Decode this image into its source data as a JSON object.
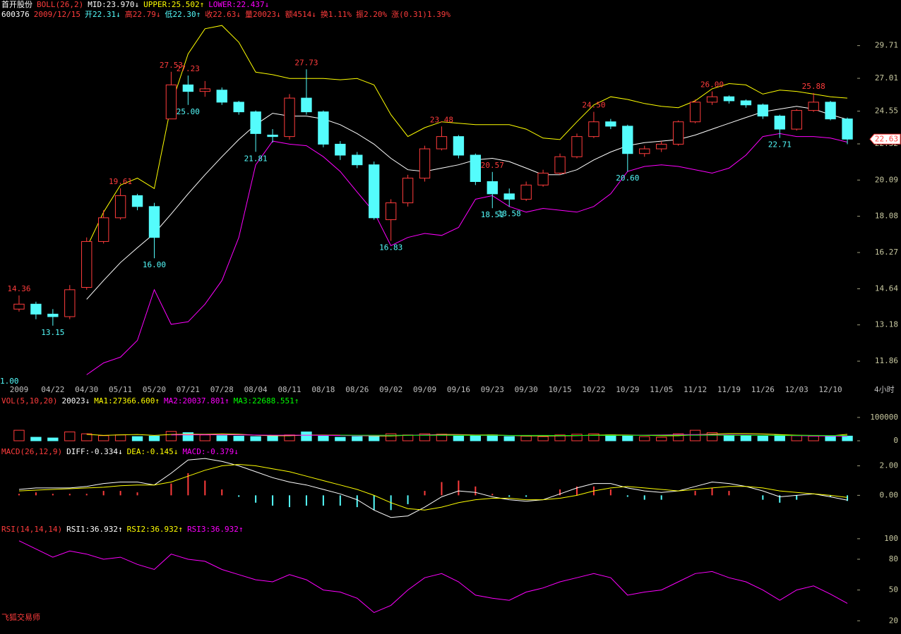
{
  "header": {
    "title_row": [
      {
        "text": "首开股份",
        "color": "#ffffff"
      },
      {
        "text": "BOLL(26,2)",
        "color": "#ff3c3c"
      },
      {
        "text": "MID:23.970↓",
        "color": "#ffffff"
      },
      {
        "text": "UPPER:25.502↑",
        "color": "#ffff00"
      },
      {
        "text": "LOWER:22.437↓",
        "color": "#ff00ff"
      }
    ],
    "quote_row": [
      {
        "text": "600376",
        "color": "#ffffff"
      },
      {
        "text": "2009/12/15",
        "color": "#ff3c3c"
      },
      {
        "text": "开22.31↓",
        "color": "#54fcfc"
      },
      {
        "text": "高22.79↓",
        "color": "#ff3c3c"
      },
      {
        "text": "低22.30↑",
        "color": "#54fcfc"
      },
      {
        "text": "收22.63↓",
        "color": "#ff3c3c"
      },
      {
        "text": "量20023↓",
        "color": "#ff3c3c"
      },
      {
        "text": "额4514↓",
        "color": "#ff3c3c"
      },
      {
        "text": "换1.11%",
        "color": "#ff3c3c"
      },
      {
        "text": "振2.20%",
        "color": "#ff3c3c"
      },
      {
        "text": "涨(0.31)1.39%",
        "color": "#ff3c3c"
      }
    ]
  },
  "footer": "飞狐交易师",
  "chart_data": [
    {
      "type": "candlestick",
      "log": true,
      "up_color": "#ff3c3c",
      "down_color": "#54fcfc",
      "categories": [
        "2009",
        null,
        "04/22",
        null,
        "04/30",
        null,
        "05/11",
        null,
        "05/20",
        null,
        "07/21",
        null,
        "07/28",
        null,
        "08/04",
        null,
        "08/11",
        null,
        "08/18",
        null,
        "08/26",
        null,
        "09/02",
        null,
        "09/09",
        null,
        "09/16",
        null,
        "09/23",
        null,
        "09/30",
        null,
        "10/15",
        null,
        "10/22",
        null,
        "10/29",
        null,
        "11/05",
        null,
        "11/12",
        null,
        "11/19",
        null,
        "11/26",
        null,
        "12/03",
        null,
        "12/10",
        null
      ],
      "open": [
        13.8,
        14.0,
        13.6,
        13.5,
        14.7,
        16.8,
        18.0,
        19.2,
        18.6,
        24.0,
        26.5,
        26.0,
        26.1,
        25.2,
        24.5,
        22.9,
        22.8,
        25.5,
        24.5,
        22.3,
        21.6,
        21.0,
        17.9,
        18.8,
        20.2,
        22.0,
        22.8,
        21.6,
        20.0,
        19.3,
        19.0,
        19.8,
        20.5,
        21.5,
        22.8,
        23.8,
        23.5,
        21.7,
        22.0,
        22.3,
        23.8,
        25.2,
        25.6,
        25.3,
        25.0,
        24.2,
        23.3,
        24.6,
        25.2,
        24.0
      ],
      "high": [
        14.36,
        14.1,
        13.8,
        14.8,
        17.0,
        18.4,
        19.61,
        19.3,
        18.8,
        27.53,
        27.23,
        26.8,
        26.3,
        25.3,
        24.6,
        23.3,
        25.8,
        27.73,
        24.6,
        22.5,
        21.8,
        21.2,
        19.0,
        20.4,
        22.2,
        23.48,
        22.9,
        21.7,
        20.57,
        19.6,
        20.0,
        20.7,
        21.7,
        23.0,
        24.5,
        24.0,
        23.6,
        22.2,
        22.5,
        23.9,
        25.4,
        26.0,
        25.7,
        25.4,
        25.1,
        24.3,
        24.7,
        25.88,
        25.3,
        24.1
      ],
      "low": [
        13.7,
        13.4,
        13.15,
        13.4,
        14.6,
        16.7,
        17.9,
        18.4,
        16.0,
        24.0,
        25.0,
        25.6,
        25.0,
        24.3,
        21.81,
        22.4,
        22.6,
        24.3,
        22.1,
        21.3,
        20.8,
        17.9,
        16.83,
        18.6,
        20.0,
        21.9,
        21.4,
        19.8,
        18.51,
        18.58,
        18.9,
        19.7,
        20.4,
        21.4,
        22.7,
        23.3,
        20.6,
        21.5,
        21.8,
        22.2,
        23.7,
        25.0,
        25.1,
        24.8,
        24.0,
        22.71,
        23.2,
        24.5,
        23.9,
        22.3
      ],
      "close": [
        14.0,
        13.6,
        13.5,
        14.6,
        16.8,
        18.0,
        19.2,
        18.6,
        17.0,
        26.5,
        26.0,
        26.2,
        25.2,
        24.5,
        23.0,
        22.8,
        25.5,
        24.5,
        22.3,
        21.6,
        21.0,
        18.0,
        18.8,
        20.2,
        22.0,
        22.8,
        21.6,
        20.0,
        19.3,
        19.0,
        19.8,
        20.5,
        21.5,
        22.8,
        23.8,
        23.5,
        21.7,
        22.0,
        22.3,
        23.8,
        25.2,
        25.6,
        25.3,
        25.0,
        24.2,
        23.3,
        24.6,
        25.2,
        24.0,
        22.63
      ],
      "high_labels": [
        "14.36",
        null,
        null,
        null,
        null,
        null,
        "19.61",
        null,
        null,
        "27.53",
        "27.23",
        null,
        null,
        null,
        null,
        null,
        null,
        "27.73",
        null,
        null,
        null,
        null,
        null,
        null,
        null,
        "23.48",
        null,
        null,
        "20.57",
        null,
        null,
        null,
        null,
        null,
        "24.50",
        null,
        null,
        null,
        null,
        null,
        null,
        "26.00",
        null,
        null,
        null,
        null,
        null,
        "25.88",
        null,
        null
      ],
      "low_labels": [
        null,
        null,
        "13.15",
        null,
        null,
        null,
        null,
        null,
        "16.00",
        null,
        "25.00",
        null,
        null,
        null,
        "21.81",
        null,
        null,
        null,
        null,
        null,
        null,
        null,
        "16.83",
        null,
        null,
        null,
        null,
        null,
        "18.51",
        "18.58",
        null,
        null,
        null,
        null,
        null,
        null,
        "20.60",
        null,
        null,
        null,
        null,
        null,
        null,
        null,
        null,
        "22.71",
        null,
        null,
        null,
        null
      ],
      "series": [
        {
          "color": "#ffffff",
          "values": [
            null,
            null,
            null,
            null,
            14.2,
            15.0,
            15.8,
            16.5,
            17.2,
            18.2,
            19.3,
            20.4,
            21.5,
            22.6,
            23.6,
            24.4,
            24.2,
            24.2,
            24.0,
            23.6,
            23.0,
            22.3,
            21.4,
            20.7,
            20.6,
            20.8,
            21.0,
            21.3,
            21.4,
            21.2,
            20.8,
            20.4,
            20.4,
            20.7,
            21.3,
            21.8,
            22.2,
            22.4,
            22.5,
            22.6,
            22.9,
            23.3,
            23.7,
            24.1,
            24.5,
            24.7,
            24.9,
            24.7,
            24.3,
            23.97
          ]
        },
        {
          "color": "#ffff00",
          "values": [
            null,
            null,
            null,
            null,
            16.5,
            18.3,
            19.8,
            20.2,
            19.6,
            25.0,
            29.0,
            31.2,
            31.5,
            30.0,
            27.5,
            27.3,
            27.0,
            27.0,
            27.0,
            26.9,
            27.0,
            26.5,
            24.3,
            22.8,
            23.4,
            23.8,
            23.7,
            23.6,
            23.6,
            23.6,
            23.3,
            22.7,
            22.6,
            23.8,
            25.0,
            25.6,
            25.4,
            25.1,
            24.9,
            24.8,
            25.3,
            26.2,
            26.6,
            26.5,
            25.8,
            26.1,
            26.0,
            25.8,
            25.6,
            25.502
          ]
        },
        {
          "color": "#ff00ff",
          "values": [
            null,
            null,
            null,
            null,
            11.4,
            11.8,
            12.0,
            12.6,
            14.6,
            13.2,
            13.3,
            14.0,
            15.0,
            17.0,
            21.0,
            22.5,
            22.3,
            22.2,
            21.5,
            20.6,
            19.4,
            18.3,
            16.6,
            17.0,
            17.2,
            17.1,
            17.5,
            19.0,
            19.2,
            18.6,
            18.3,
            18.5,
            18.4,
            18.3,
            18.6,
            19.3,
            20.6,
            20.9,
            21.0,
            20.9,
            20.7,
            20.5,
            20.8,
            21.6,
            22.8,
            23.0,
            22.8,
            22.8,
            22.7,
            22.437
          ]
        }
      ],
      "ylim": [
        11.2,
        31.9
      ],
      "yticks": [
        11.86,
        13.18,
        14.64,
        16.27,
        18.08,
        20.09,
        22.32,
        24.55,
        27.01,
        29.71
      ],
      "last_label": "22.63",
      "corner_label": "1.00",
      "period": "4小时"
    },
    {
      "type": "bar",
      "legend": [
        {
          "text": "VOL(5,10,20)",
          "color": "#ff3c3c"
        },
        {
          "text": "20023↓",
          "color": "#ffffff"
        },
        {
          "text": "MA1:27366.600↑",
          "color": "#ffff00"
        },
        {
          "text": "MA2:20037.801↑",
          "color": "#ff00ff"
        },
        {
          "text": "MA3:22688.551↑",
          "color": "#00ff00"
        }
      ],
      "values": [
        45000,
        15000,
        12000,
        38000,
        30000,
        22000,
        25000,
        18000,
        20000,
        40000,
        35000,
        25000,
        22000,
        20000,
        18000,
        22000,
        25000,
        38000,
        20000,
        15000,
        18000,
        22000,
        30000,
        25000,
        30000,
        28000,
        20000,
        22000,
        25000,
        18000,
        20000,
        18000,
        25000,
        28000,
        30000,
        25000,
        20000,
        18000,
        15000,
        30000,
        45000,
        35000,
        25000,
        22000,
        20000,
        25000,
        22000,
        20000,
        18000,
        20023
      ],
      "series": [
        {
          "color": "#ffff00",
          "values": [
            null,
            null,
            null,
            null,
            27400,
            23000,
            25400,
            27000,
            23000,
            27000,
            28400,
            27600,
            29200,
            28000,
            24000,
            21400,
            21400,
            24600,
            24600,
            23800,
            22600,
            20600,
            21000,
            23400,
            25000,
            27000,
            26600,
            25000,
            25000,
            22600,
            21000,
            20600,
            21000,
            21800,
            24200,
            25200,
            24800,
            23200,
            21600,
            21600,
            25600,
            28800,
            31000,
            31000,
            29400,
            26400,
            23800,
            22600,
            21000,
            27366.6
          ]
        },
        {
          "color": "#ff00ff",
          "values": [
            null,
            null,
            null,
            null,
            null,
            null,
            null,
            null,
            null,
            25000,
            25500,
            25800,
            26000,
            25500,
            24500,
            24000,
            24000,
            23900,
            23300,
            22800,
            22000,
            22000,
            22800,
            23900,
            24700,
            24800,
            24400,
            23300,
            22600,
            22400,
            22500,
            22400,
            22200,
            22400,
            22600,
            22800,
            23300,
            24100,
            25000,
            26300,
            26500,
            26000,
            25400,
            24800,
            23800,
            22600,
            21800,
            21000,
            20500,
            20037.801
          ]
        },
        {
          "color": "#00ff00",
          "values": [
            null,
            null,
            null,
            null,
            null,
            null,
            null,
            null,
            null,
            null,
            null,
            null,
            null,
            null,
            null,
            null,
            null,
            null,
            null,
            24300,
            24000,
            23800,
            23600,
            23400,
            23200,
            23300,
            23400,
            23300,
            23200,
            23100,
            23000,
            22900,
            22800,
            22800,
            22900,
            23100,
            23200,
            23400,
            23600,
            23800,
            24000,
            23900,
            23700,
            23500,
            23300,
            23100,
            23000,
            22900,
            22800,
            22688.551
          ]
        }
      ],
      "ylim": [
        0,
        136000
      ],
      "yticks": [
        0,
        100000
      ]
    },
    {
      "type": "macd",
      "up_color": "#ff3c3c",
      "down_color": "#54fcfc",
      "legend": [
        {
          "text": "MACD(26,12,9)",
          "color": "#ff3c3c"
        },
        {
          "text": "DIFF:-0.334↓",
          "color": "#ffffff"
        },
        {
          "text": "DEA:-0.145↓",
          "color": "#ffff00"
        },
        {
          "text": "MACD:-0.379↓",
          "color": "#ff00ff"
        }
      ],
      "values": [
        0.1,
        0.2,
        0.1,
        0.1,
        0.1,
        0.3,
        0.3,
        0.2,
        0.0,
        0.8,
        1.5,
        1.0,
        0.4,
        -0.1,
        -0.5,
        -0.7,
        -0.8,
        -0.7,
        -0.7,
        -0.7,
        -0.8,
        -1.0,
        -1.0,
        -0.6,
        0.3,
        0.9,
        1.0,
        0.6,
        0.1,
        -0.1,
        -0.1,
        0.0,
        0.4,
        0.6,
        0.6,
        0.4,
        -0.1,
        -0.3,
        -0.3,
        0.0,
        0.3,
        0.5,
        0.3,
        0.0,
        -0.3,
        -0.5,
        -0.3,
        0.0,
        -0.1,
        -0.379
      ],
      "series": [
        {
          "color": "#ffffff",
          "values": [
            0.4,
            0.5,
            0.5,
            0.5,
            0.6,
            0.8,
            0.9,
            0.9,
            0.7,
            1.5,
            2.4,
            2.5,
            2.3,
            2.0,
            1.6,
            1.2,
            0.9,
            0.7,
            0.4,
            0.1,
            -0.3,
            -1.0,
            -1.5,
            -1.4,
            -0.8,
            -0.1,
            0.3,
            0.2,
            -0.1,
            -0.3,
            -0.4,
            -0.3,
            0.1,
            0.5,
            0.8,
            0.8,
            0.5,
            0.3,
            0.2,
            0.3,
            0.6,
            0.9,
            0.8,
            0.6,
            0.3,
            -0.1,
            0.0,
            0.1,
            -0.1,
            -0.334
          ]
        },
        {
          "color": "#ffff00",
          "values": [
            0.3,
            0.35,
            0.4,
            0.45,
            0.5,
            0.55,
            0.65,
            0.7,
            0.7,
            0.9,
            1.3,
            1.7,
            2.0,
            2.1,
            2.0,
            1.8,
            1.6,
            1.3,
            1.0,
            0.7,
            0.4,
            0.0,
            -0.5,
            -0.9,
            -1.0,
            -0.8,
            -0.5,
            -0.3,
            -0.2,
            -0.2,
            -0.3,
            -0.3,
            -0.2,
            0.0,
            0.3,
            0.5,
            0.6,
            0.5,
            0.4,
            0.3,
            0.4,
            0.5,
            0.6,
            0.6,
            0.5,
            0.3,
            0.2,
            0.1,
            0.0,
            -0.145
          ]
        }
      ],
      "ylim": [
        -1.8,
        2.6
      ],
      "yticks": [
        {
          "value": 2,
          "label": "2.00"
        },
        {
          "value": 0,
          "label": "0.00"
        }
      ]
    },
    {
      "type": "line",
      "legend": [
        {
          "text": "RSI(14,14,14)",
          "color": "#ff3c3c"
        },
        {
          "text": "RSI1:36.932↑",
          "color": "#ffffff"
        },
        {
          "text": "RSI2:36.932↑",
          "color": "#ffff00"
        },
        {
          "text": "RSI3:36.932↑",
          "color": "#ff00ff"
        }
      ],
      "series": [
        {
          "color": "#ff00ff",
          "values": [
            98,
            90,
            82,
            88,
            85,
            80,
            82,
            75,
            70,
            85,
            80,
            78,
            70,
            65,
            60,
            58,
            65,
            60,
            50,
            48,
            42,
            28,
            35,
            50,
            62,
            66,
            58,
            45,
            42,
            40,
            48,
            52,
            58,
            62,
            66,
            62,
            45,
            48,
            50,
            58,
            66,
            68,
            62,
            58,
            50,
            40,
            50,
            54,
            46,
            36.932
          ]
        }
      ],
      "ylim": [
        13.3,
        101.3
      ],
      "yticks": [
        20,
        50,
        80,
        100
      ]
    }
  ]
}
